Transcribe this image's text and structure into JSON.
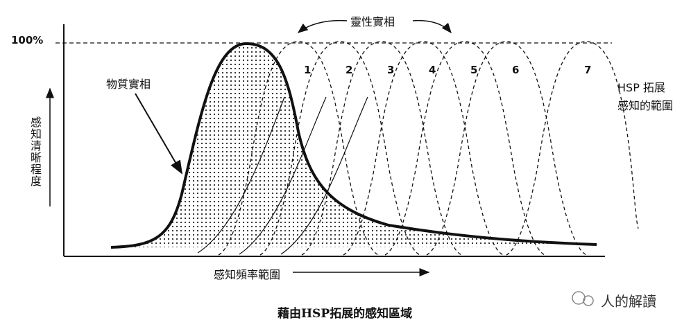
{
  "y_axis": {
    "top_label": "100%",
    "title": "感知清晰程度"
  },
  "x_axis": {
    "title": "感知頻率範圍"
  },
  "annotations": {
    "spiritual": "靈性實相",
    "physical": "物質實相",
    "hsp_range": [
      "HSP 拓展",
      "感知的範圍"
    ]
  },
  "curve_labels": [
    "1",
    "2",
    "3",
    "4",
    "5",
    "6",
    "7"
  ],
  "caption": "藉由HSP拓展的感知區域",
  "watermark": "人的解讀"
}
